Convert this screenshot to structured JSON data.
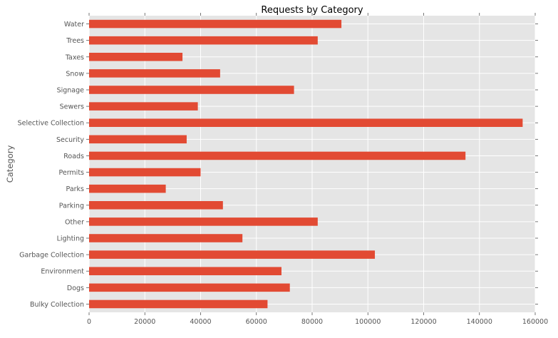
{
  "chart_data": {
    "type": "bar",
    "orientation": "horizontal",
    "title": "Requests by Category",
    "xlabel": "",
    "ylabel": "Category",
    "xlim": [
      0,
      160000
    ],
    "xticks": [
      0,
      20000,
      40000,
      60000,
      80000,
      100000,
      120000,
      140000,
      160000
    ],
    "xtick_labels": [
      "0",
      "20000",
      "40000",
      "60000",
      "80000",
      "100000",
      "120000",
      "140000",
      "160000"
    ],
    "grid": true,
    "categories": [
      "Bulky Collection",
      "Dogs",
      "Environment",
      "Garbage Collection",
      "Lighting",
      "Other",
      "Parking",
      "Parks",
      "Permits",
      "Roads",
      "Security",
      "Selective Collection",
      "Sewers",
      "Signage",
      "Snow",
      "Taxes",
      "Trees",
      "Water"
    ],
    "values": [
      64000,
      72000,
      69000,
      102500,
      55000,
      82000,
      48000,
      27500,
      40000,
      135000,
      35000,
      155500,
      39000,
      73500,
      47000,
      33500,
      82000,
      90500
    ],
    "colors": {
      "bar": "#E24A33",
      "background": "#E5E5E5",
      "grid": "#FFFFFF",
      "text": "#555555"
    }
  }
}
